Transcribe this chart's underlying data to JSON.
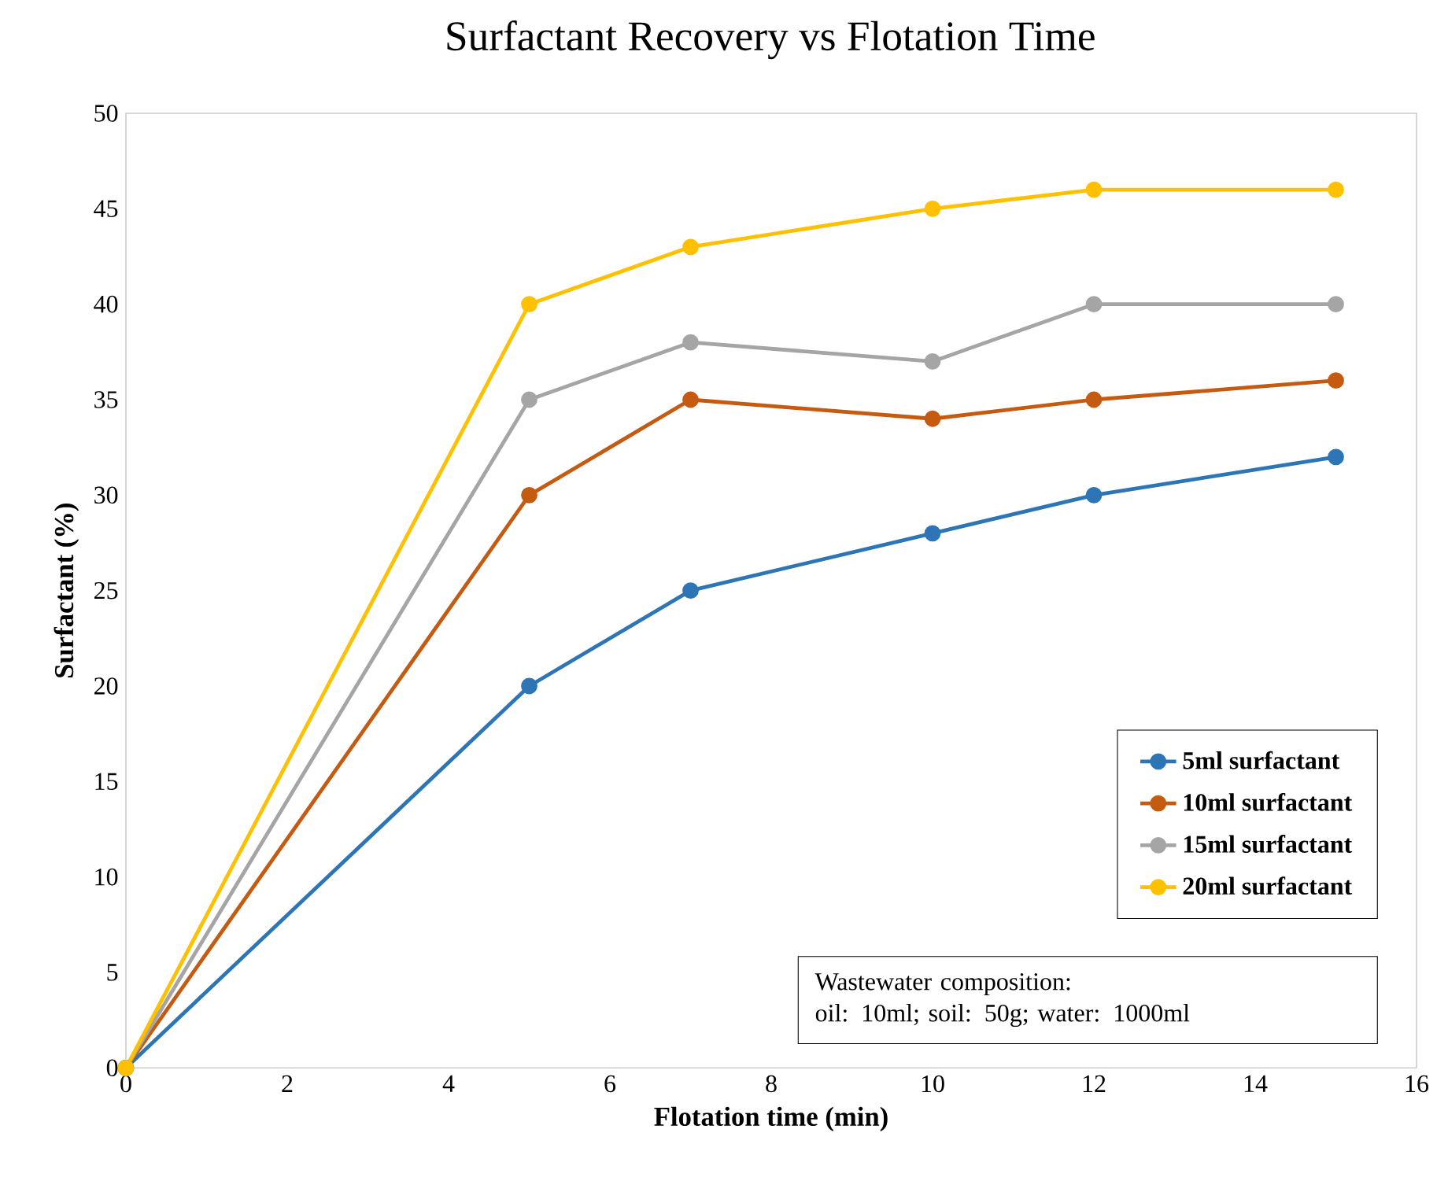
{
  "chart_data": {
    "type": "line",
    "title": "Surfactant Recovery vs Flotation Time",
    "xlabel": "Flotation time (min)",
    "ylabel": "Surfactant (%)",
    "x": [
      0,
      5,
      7,
      10,
      12,
      15
    ],
    "series": [
      {
        "name": "5ml surfactant",
        "color": "#2e75b6",
        "values": [
          0,
          20,
          25,
          28,
          30,
          32
        ]
      },
      {
        "name": "10ml surfactant",
        "color": "#c55a11",
        "values": [
          0,
          30,
          35,
          34,
          35,
          36
        ]
      },
      {
        "name": "15ml surfactant",
        "color": "#a5a5a5",
        "values": [
          0,
          35,
          38,
          37,
          40,
          40
        ]
      },
      {
        "name": "20ml surfactant",
        "color": "#ffc000",
        "values": [
          0,
          40,
          43,
          45,
          46,
          46
        ]
      }
    ],
    "xlim": [
      0,
      16
    ],
    "xticks": [
      0,
      2,
      4,
      6,
      8,
      10,
      12,
      14,
      16
    ],
    "ylim": [
      0,
      50
    ],
    "yticks": [
      0,
      5,
      10,
      15,
      20,
      25,
      30,
      35,
      40,
      45,
      50
    ],
    "legend": "bottom right",
    "marker": "circle",
    "line_style": "solid",
    "grid": false,
    "annotations": [
      "Wastewater composition:",
      "oil: 10ml; soil: 50g; water: 1000ml"
    ]
  }
}
